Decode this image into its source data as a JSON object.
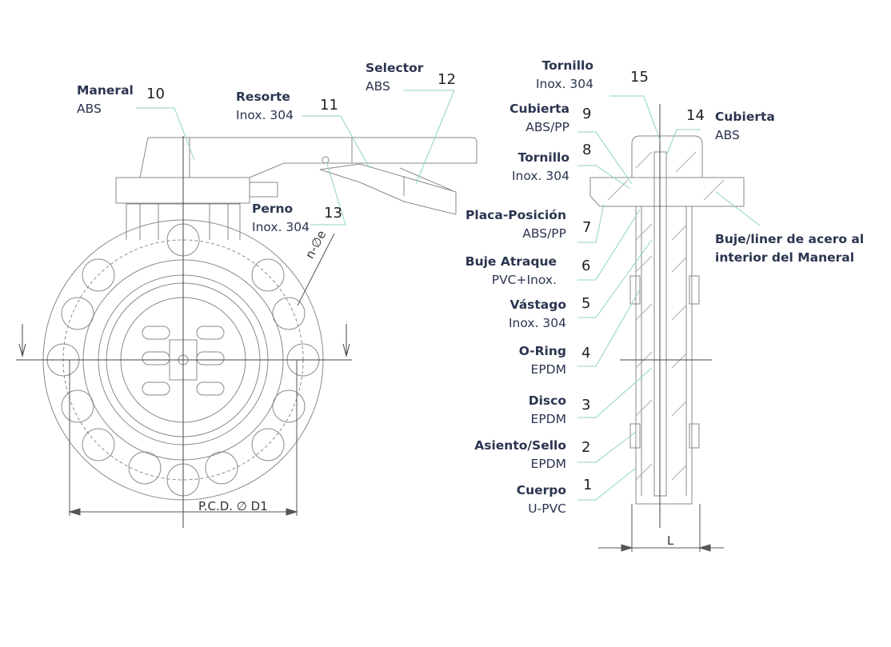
{
  "parts": [
    {
      "id": "1",
      "name": "Cuerpo",
      "material": "U-PVC"
    },
    {
      "id": "2",
      "name": "Asiento/Sello",
      "material": "EPDM"
    },
    {
      "id": "3",
      "name": "Disco",
      "material": "EPDM"
    },
    {
      "id": "4",
      "name": "O-Ring",
      "material": "EPDM"
    },
    {
      "id": "5",
      "name": "Vástago",
      "material": "Inox. 304"
    },
    {
      "id": "6",
      "name": "Buje Atraque",
      "material": "PVC+Inox."
    },
    {
      "id": "7",
      "name": "Placa-Posición",
      "material": "ABS/PP"
    },
    {
      "id": "8",
      "name": "Tornillo",
      "material": "Inox. 304"
    },
    {
      "id": "9",
      "name": "Cubierta",
      "material": "ABS/PP"
    },
    {
      "id": "10",
      "name": "Maneral",
      "material": "ABS"
    },
    {
      "id": "11",
      "name": "Resorte",
      "material": "Inox. 304"
    },
    {
      "id": "12",
      "name": "Selector",
      "material": "ABS"
    },
    {
      "id": "13",
      "name": "Perno",
      "material": "Inox. 304"
    },
    {
      "id": "14",
      "name": "Cubierta",
      "material": "ABS"
    },
    {
      "id": "15",
      "name": "Tornillo",
      "material": "Inox. 304"
    }
  ],
  "note": {
    "line1": "Buje/liner de acero al",
    "line2": "interior del Maneral"
  },
  "dimensions": {
    "pcd": "P.C.D. ∅ D1",
    "holes": "n-∅e",
    "length": "L"
  },
  "colors": {
    "text": "#2b3550",
    "leader": "#8fd3c3",
    "drawing": "#8a8a8a"
  }
}
